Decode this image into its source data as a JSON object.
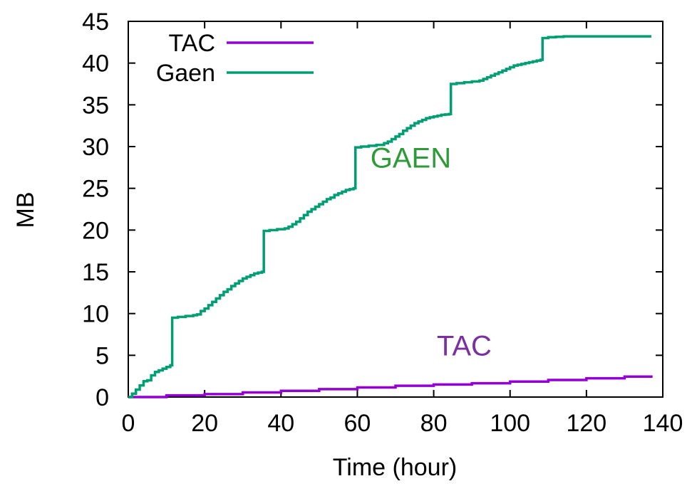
{
  "chart_data": {
    "type": "line",
    "title": "",
    "xlabel": "Time (hour)",
    "ylabel": "MB",
    "xlim": [
      0,
      140
    ],
    "ylim": [
      0,
      45
    ],
    "xticks": [
      0,
      20,
      40,
      60,
      80,
      100,
      120,
      140
    ],
    "yticks": [
      0,
      5,
      10,
      15,
      20,
      25,
      30,
      35,
      40,
      45
    ],
    "grid": false,
    "legend_position": "top-left",
    "series": [
      {
        "name": "TAC",
        "color": "#9400d3",
        "style": "steps",
        "x": [
          0,
          10,
          20,
          30,
          40,
          50,
          60,
          70,
          80,
          90,
          100,
          110,
          120,
          130,
          137
        ],
        "y": [
          0,
          0.2,
          0.35,
          0.55,
          0.75,
          0.95,
          1.15,
          1.35,
          1.5,
          1.65,
          1.85,
          2.05,
          2.25,
          2.45,
          2.6
        ]
      },
      {
        "name": "Gaen",
        "color": "#009e73",
        "style": "steps",
        "x": [
          0,
          1,
          2,
          3,
          4,
          5,
          6,
          7,
          8,
          9,
          10,
          11,
          11.5,
          13,
          15,
          17,
          18,
          19,
          20,
          21,
          22,
          23,
          24,
          25,
          26,
          27,
          28,
          29,
          30,
          31,
          32,
          33,
          34,
          35,
          35.5,
          37,
          39,
          41,
          42,
          43,
          44,
          45,
          46,
          47,
          48,
          49,
          50,
          51,
          52,
          53,
          54,
          55,
          56,
          57,
          58,
          59,
          59.5,
          61,
          63,
          65,
          67,
          68,
          69,
          70,
          71,
          72,
          73,
          74,
          75,
          76,
          77,
          78,
          79,
          80,
          81,
          82,
          83,
          84,
          84.5,
          86,
          88,
          90,
          92,
          93,
          94,
          95,
          96,
          97,
          98,
          99,
          100,
          101,
          102,
          103,
          104,
          105,
          106,
          107,
          108,
          108.5,
          110,
          112,
          114,
          116,
          120,
          125,
          130,
          137
        ],
        "y": [
          0,
          0.4,
          0.9,
          1.4,
          1.9,
          2.0,
          2.6,
          3.0,
          3.2,
          3.4,
          3.6,
          3.8,
          9.5,
          9.6,
          9.7,
          9.8,
          9.9,
          10.3,
          10.6,
          11.0,
          11.4,
          11.8,
          12.2,
          12.6,
          12.9,
          13.3,
          13.6,
          13.9,
          14.2,
          14.4,
          14.6,
          14.8,
          14.9,
          15.0,
          19.9,
          20.0,
          20.1,
          20.2,
          20.4,
          20.7,
          21.0,
          21.4,
          21.8,
          22.2,
          22.5,
          22.8,
          23.1,
          23.4,
          23.7,
          23.9,
          24.2,
          24.4,
          24.6,
          24.8,
          24.9,
          25.0,
          29.9,
          30.0,
          30.1,
          30.2,
          30.4,
          30.6,
          30.9,
          31.2,
          31.5,
          31.9,
          32.2,
          32.5,
          32.8,
          33.0,
          33.2,
          33.4,
          33.5,
          33.6,
          33.7,
          33.8,
          33.85,
          33.9,
          37.5,
          37.6,
          37.7,
          37.8,
          37.9,
          38.1,
          38.3,
          38.5,
          38.7,
          38.9,
          39.1,
          39.3,
          39.5,
          39.7,
          39.8,
          39.9,
          40.0,
          40.1,
          40.2,
          40.3,
          40.4,
          43.0,
          43.1,
          43.15,
          43.2,
          43.2,
          43.2,
          43.2,
          43.2,
          43.2
        ]
      }
    ],
    "annotations": [
      {
        "text": "GAEN",
        "x": 74,
        "y": 27.5,
        "color": "#2e9a38"
      },
      {
        "text": "TAC",
        "x": 88,
        "y": 5.0,
        "color": "#7b2fa0"
      }
    ]
  }
}
